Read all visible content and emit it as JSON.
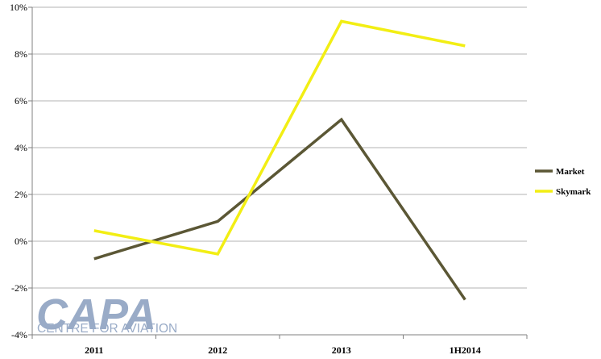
{
  "chart_data": {
    "type": "line",
    "categories": [
      "2011",
      "2012",
      "2013",
      "1H2014"
    ],
    "series": [
      {
        "name": "Market",
        "values": [
          -0.75,
          0.85,
          5.2,
          -2.5
        ],
        "color": "#5b5735"
      },
      {
        "name": "Skymark",
        "values": [
          0.45,
          -0.55,
          9.4,
          8.35
        ],
        "color": "#f2ee14"
      }
    ],
    "yticks": [
      "10%",
      "8%",
      "6%",
      "4%",
      "2%",
      "0%",
      "-2%",
      "-4%"
    ],
    "ylim": [
      -4,
      10
    ],
    "grid": true,
    "legend_position": "right"
  },
  "watermark": {
    "text": "CAPA",
    "subtext": "CENTRE FOR AVIATION",
    "color": "#8fa3c1"
  }
}
